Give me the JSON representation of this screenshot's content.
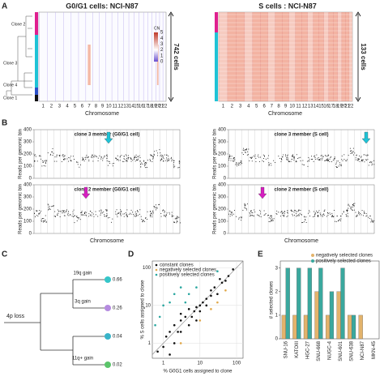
{
  "panel_labels": [
    "A",
    "B",
    "C",
    "D",
    "E"
  ],
  "heatmaps": {
    "left": {
      "title": "G0/G1 cells: NCI-N87",
      "cells_label": "742 cells"
    },
    "right": {
      "title": "S cells : NCI-N87",
      "cells_label": "133 cells"
    },
    "chromosomes": [
      "1",
      "2",
      "3",
      "4",
      "5",
      "6",
      "7",
      "8",
      "9",
      "10",
      "11",
      "12",
      "13",
      "14",
      "15",
      "16",
      "17",
      "18",
      "19",
      "20",
      "21",
      "22"
    ],
    "xlabel": "Chromosome",
    "clones": [
      "Clone 2",
      "Clone 3",
      "Clone 4",
      "Clone 1"
    ],
    "legend_title": "CN",
    "legend_ticks": [
      5,
      4,
      3,
      2,
      1,
      0
    ]
  },
  "genome_plots": {
    "annotations": [
      "clone 3 member (G0/G1 cell)",
      "clone 3 member (S cell)",
      "clone 2 member (G0/G1 cell)",
      "clone 2 member (S cell)"
    ],
    "ylabel": "Reads per genomic bin",
    "yticks": [
      0,
      100,
      200,
      300,
      400
    ],
    "xlabel": "Chromosome"
  },
  "tree": {
    "root": "4p loss",
    "leaves": [
      {
        "label": "19q gain",
        "value": 0.66,
        "color": "#35c6c9"
      },
      {
        "label": "3q gain",
        "value": 0.26,
        "color": "#b58be0"
      },
      {
        "label": null,
        "value": 0.04,
        "color": "#39b4c9"
      },
      {
        "label": "11q+ gain",
        "value": 0.02,
        "color": "#5bc46a"
      }
    ]
  },
  "chart_data": [
    {
      "type": "scatter",
      "xlabel": "% G0G1 cells assigned to clone",
      "ylabel": "% S cells assigned to clone",
      "log_x": true,
      "log_y": true,
      "grid": true,
      "xlim": [
        0.5,
        150
      ],
      "ylim": [
        0.4,
        150
      ],
      "xticks": [
        1,
        10,
        100
      ],
      "yticks": [
        1,
        10,
        100
      ],
      "legend": "upper left",
      "series": [
        {
          "name": "constant clones",
          "color": "#111111",
          "x": [
            0.7,
            1,
            1.2,
            1.5,
            2,
            2.5,
            3,
            3,
            4,
            5,
            5,
            6,
            7,
            8,
            10,
            10,
            12,
            15,
            15,
            20,
            20,
            25,
            30,
            40,
            50,
            60,
            80,
            2,
            1.5,
            8,
            3,
            35
          ],
          "y": [
            0.6,
            0.8,
            1.5,
            2,
            3,
            2,
            4,
            6,
            5,
            3,
            8,
            5,
            7,
            9,
            10,
            7,
            12,
            15,
            10,
            18,
            25,
            30,
            20,
            40,
            45,
            60,
            90,
            1,
            0.5,
            4,
            2,
            50
          ]
        },
        {
          "name": "negatively selected clones",
          "color": "#e0a84a",
          "x": [
            10,
            20,
            30,
            50,
            3
          ],
          "y": [
            4,
            8,
            12,
            25,
            1
          ]
        },
        {
          "name": "positively selected clones",
          "color": "#2aa7a0",
          "x": [
            1,
            0.8,
            2,
            3,
            1.5,
            5,
            8,
            0.6,
            4,
            30
          ],
          "y": [
            10,
            5,
            20,
            30,
            12,
            20,
            30,
            3,
            12,
            80
          ]
        }
      ]
    },
    {
      "type": "bar",
      "ylabel": "# selected clones",
      "categories": [
        "SNU-16",
        "KATOIII",
        "HGC-27",
        "SNU-668",
        "NUGC-4",
        "SNU-601",
        "SNU-638",
        "NCI-N87",
        "MKN-45"
      ],
      "ylim": [
        0,
        3.3
      ],
      "yticks": [
        0,
        1,
        2,
        3
      ],
      "legend": "upper right",
      "series": [
        {
          "name": "negatively selected clones",
          "color": "#e3b36b",
          "values": [
            1,
            1,
            1,
            2,
            1,
            2,
            1,
            1,
            0
          ]
        },
        {
          "name": "positively selected clones",
          "color": "#3aa89e",
          "values": [
            3,
            3,
            3,
            3,
            2,
            3,
            1,
            0,
            0
          ]
        }
      ]
    }
  ]
}
